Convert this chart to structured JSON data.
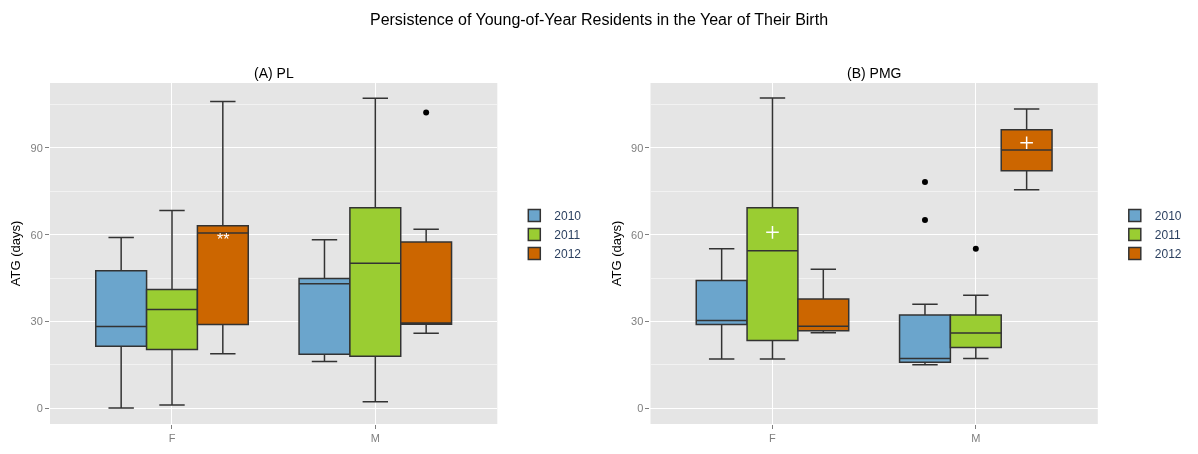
{
  "chart_data": [
    {
      "type": "box",
      "title": "Persistence of Young-of-Year Residents in the Year of Their Birth",
      "subtitle": "(A) PL",
      "ylabel": "ATG (days)",
      "categories": [
        "F",
        "M"
      ],
      "ylim": [
        -5.5,
        112.5
      ],
      "yticks": [
        0,
        30,
        60,
        90
      ],
      "grid": true,
      "legend": "right",
      "series": [
        {
          "name": "2010",
          "color": "#6ba5cc",
          "boxes": [
            {
              "low": 0,
              "q1": 21.4,
              "median": 28.2,
              "q3": 47.5,
              "high": 59
            },
            {
              "low": 16.1,
              "q1": 18.6,
              "median": 43,
              "q3": 44.8,
              "high": 58.2
            }
          ]
        },
        {
          "name": "2011",
          "color": "#9acd32",
          "boxes": [
            {
              "low": 1.1,
              "q1": 20.3,
              "median": 34.1,
              "q3": 41,
              "high": 68.4
            },
            {
              "low": 2.2,
              "q1": 17.9,
              "median": 50.1,
              "q3": 69.3,
              "high": 107.2
            }
          ]
        },
        {
          "name": "2012",
          "color": "#cc6600",
          "boxes": [
            {
              "low": 18.8,
              "q1": 28.9,
              "median": 60.6,
              "q3": 63.1,
              "high": 106.1
            },
            {
              "low": 25.9,
              "q1": 29,
              "median": 29.4,
              "q3": 57.5,
              "high": 61.9,
              "outliers": [
                102.3
              ]
            }
          ]
        }
      ],
      "annotations": [
        {
          "text": "**",
          "x": "F",
          "y": 58.3
        }
      ]
    },
    {
      "type": "box",
      "title": "(B) PMG",
      "ylabel": "ATG (days)",
      "categories": [
        "F",
        "M"
      ],
      "ylim": [
        -5.5,
        112.5
      ],
      "yticks": [
        0,
        30,
        60,
        90
      ],
      "grid": true,
      "legend": "right",
      "series": [
        {
          "name": "2010",
          "color": "#6ba5cc",
          "boxes": [
            {
              "low": 17,
              "q1": 28.9,
              "median": 30.3,
              "q3": 44.1,
              "high": 55.1
            },
            {
              "low": 15,
              "q1": 15.9,
              "median": 17.2,
              "q3": 32.2,
              "high": 35.9,
              "outliers": [
                78.2,
                65.1
              ]
            }
          ]
        },
        {
          "name": "2011",
          "color": "#9acd32",
          "boxes": [
            {
              "low": 17,
              "q1": 23.4,
              "median": 54.4,
              "q3": 69.3,
              "high": 107.3,
              "mean": 60.8
            },
            {
              "low": 17.2,
              "q1": 21,
              "median": 26,
              "q3": 32.2,
              "high": 39,
              "outliers": [
                55.1
              ]
            }
          ]
        },
        {
          "name": "2012",
          "color": "#cc6600",
          "boxes": [
            {
              "low": 26.1,
              "q1": 26.8,
              "median": 28.3,
              "q3": 37.7,
              "high": 48
            },
            {
              "low": 75.5,
              "q1": 82.1,
              "median": 89.3,
              "q3": 96.3,
              "high": 103.5,
              "mean": 91.8
            }
          ]
        }
      ]
    }
  ]
}
